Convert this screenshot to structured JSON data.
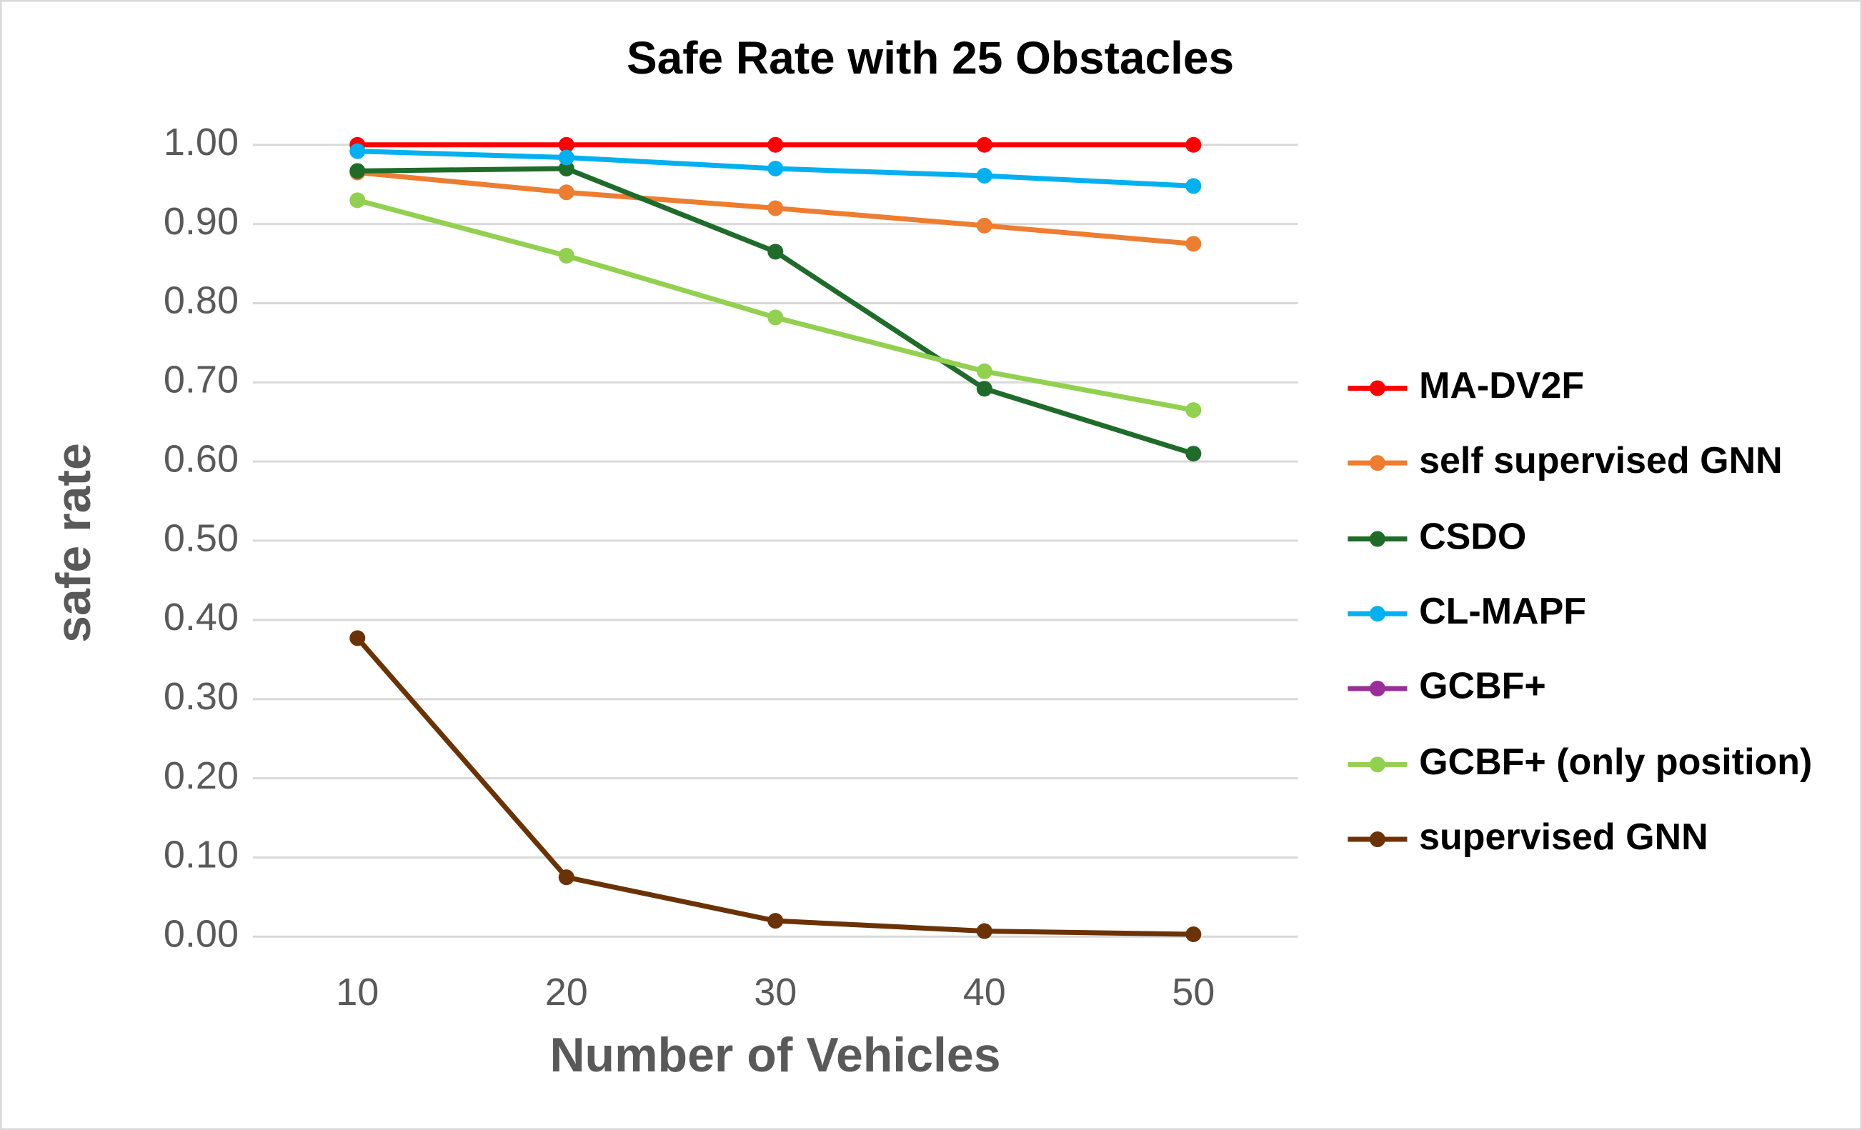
{
  "chart_data": {
    "type": "line",
    "title": "Safe Rate with 25 Obstacles",
    "xlabel": "Number of Vehicles",
    "ylabel": "safe rate",
    "categories": [
      10,
      20,
      30,
      40,
      50
    ],
    "ylim": [
      0,
      1
    ],
    "yticks": [
      {
        "value": 0,
        "label": "0.00"
      },
      {
        "value": 0.1,
        "label": "0.10"
      },
      {
        "value": 0.2,
        "label": "0.20"
      },
      {
        "value": 0.3,
        "label": "0.30"
      },
      {
        "value": 0.4,
        "label": "0.40"
      },
      {
        "value": 0.5,
        "label": "0.50"
      },
      {
        "value": 0.6,
        "label": "0.60"
      },
      {
        "value": 0.7,
        "label": "0.70"
      },
      {
        "value": 0.8,
        "label": "0.80"
      },
      {
        "value": 0.9,
        "label": "0.90"
      },
      {
        "value": 1,
        "label": "1.00"
      }
    ],
    "grid": true,
    "legend": "right",
    "series": [
      {
        "name": "MA-DV2F",
        "color": "#ff0000",
        "values": [
          1.0,
          1.0,
          1.0,
          1.0,
          1.0
        ]
      },
      {
        "name": "self supervised GNN",
        "color": "#ed7d31",
        "values": [
          0.965,
          0.94,
          0.92,
          0.898,
          0.875
        ]
      },
      {
        "name": "CSDO",
        "color": "#1e6b2a",
        "values": [
          0.967,
          0.97,
          0.865,
          0.692,
          0.61
        ]
      },
      {
        "name": "CL-MAPF",
        "color": "#00b0f0",
        "values": [
          0.992,
          0.984,
          0.97,
          0.961,
          0.948
        ]
      },
      {
        "name": "GCBF+",
        "color": "#9b2d9b",
        "values": [
          null,
          null,
          null,
          null,
          null
        ]
      },
      {
        "name": "GCBF+ (only position)",
        "color": "#92d050",
        "values": [
          0.93,
          0.86,
          0.782,
          0.714,
          0.665
        ]
      },
      {
        "name": "supervised GNN",
        "color": "#6b3305",
        "values": [
          0.377,
          0.075,
          0.02,
          0.007,
          0.003
        ]
      }
    ]
  }
}
